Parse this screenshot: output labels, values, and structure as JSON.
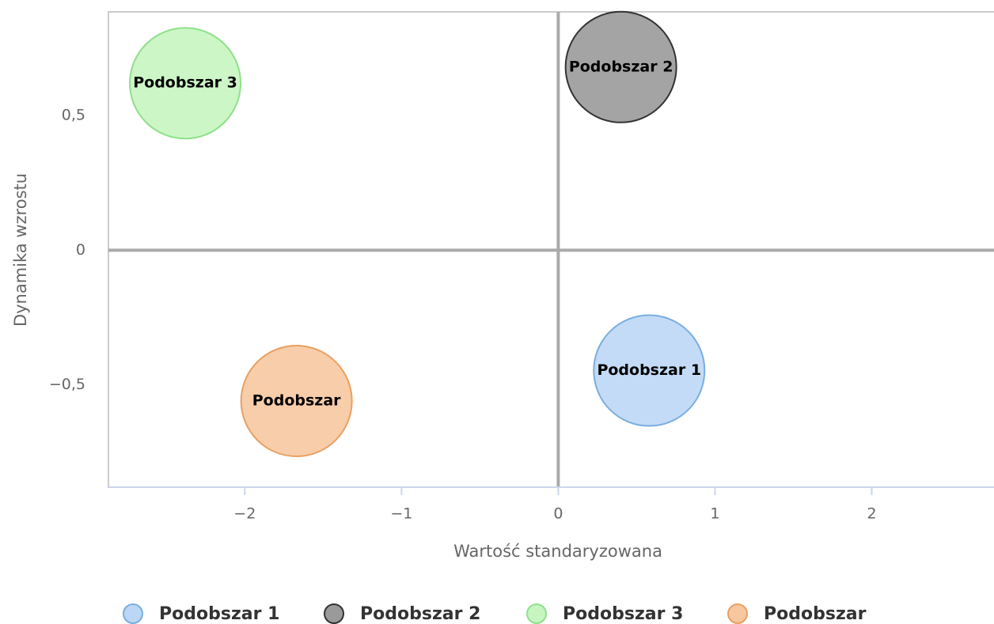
{
  "chart_data": {
    "type": "bubble",
    "xlabel": "Wartość standaryzowana",
    "ylabel": "Dynamika wzrostu",
    "xlim": [
      -2.87,
      2.78
    ],
    "ylim": [
      -0.88,
      0.885
    ],
    "xticks": [
      {
        "value": -2,
        "label": "−2"
      },
      {
        "value": -1,
        "label": "−1"
      },
      0,
      1,
      2
    ],
    "yticks": [
      {
        "value": -0.5,
        "label": "−0,5"
      },
      0,
      {
        "value": 0.5,
        "label": "0,5"
      }
    ],
    "legend": "bottom",
    "series": [
      {
        "name": "Podobszar 1",
        "color": "#bcd7f5",
        "stroke": "#7aaedf",
        "x": [
          0.58
        ],
        "values": [
          -0.447
        ],
        "sizes": [
          1
        ]
      },
      {
        "name": "Podobszar 2",
        "color": "#9a9a9a",
        "stroke": "#333333",
        "x": [
          0.4
        ],
        "values": [
          0.68
        ],
        "sizes": [
          1
        ]
      },
      {
        "name": "Podobszar 3",
        "color": "#c6f5c0",
        "stroke": "#8fe08a",
        "x": [
          -2.38
        ],
        "values": [
          0.62
        ],
        "sizes": [
          1
        ]
      },
      {
        "name": "Podobszar",
        "color": "#f7c8a0",
        "stroke": "#e8a060",
        "x": [
          -1.67
        ],
        "values": [
          -0.56
        ],
        "sizes": [
          1
        ]
      }
    ]
  }
}
